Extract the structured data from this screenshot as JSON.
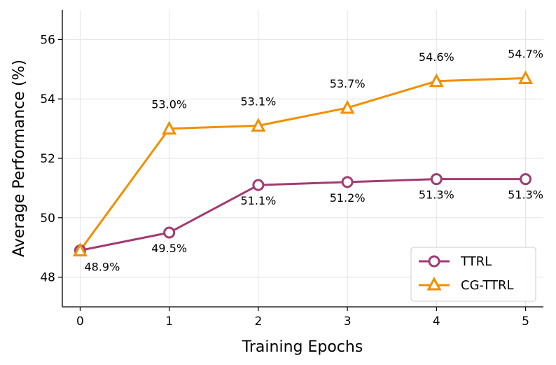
{
  "chart_data": {
    "type": "line",
    "title": "",
    "xlabel": "Training Epochs",
    "ylabel": "Average Performance (%)",
    "x": [
      0,
      1,
      2,
      3,
      4,
      5
    ],
    "xticks": [
      "0",
      "1",
      "2",
      "3",
      "4",
      "5"
    ],
    "yticks": [
      "48",
      "50",
      "52",
      "54",
      "56"
    ],
    "xlim": [
      -0.2,
      5.2
    ],
    "ylim": [
      47.0,
      57.0
    ],
    "grid": true,
    "legend_position": "lower-right",
    "series": [
      {
        "name": "TTRL",
        "color": "#a23b72",
        "marker": "circle",
        "values": [
          48.9,
          49.5,
          51.1,
          51.2,
          51.3,
          51.3
        ],
        "labels": [
          "48.9%",
          "49.5%",
          "51.1%",
          "51.2%",
          "51.3%",
          "51.3%"
        ]
      },
      {
        "name": "CG-TTRL",
        "color": "#f18f01",
        "marker": "triangle",
        "values": [
          48.9,
          53.0,
          53.1,
          53.7,
          54.6,
          54.7
        ],
        "labels": [
          "",
          "53.0%",
          "53.1%",
          "53.7%",
          "54.6%",
          "54.7%"
        ]
      }
    ]
  }
}
